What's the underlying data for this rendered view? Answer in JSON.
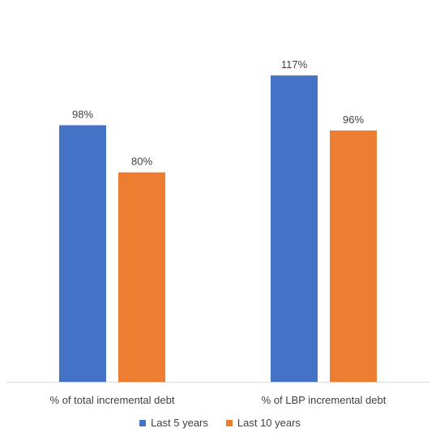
{
  "chart_data": {
    "type": "bar",
    "categories": [
      "% of total incremental debt",
      "% of LBP incremental debt"
    ],
    "series": [
      {
        "name": "Last 5 years",
        "values": [
          98,
          117
        ],
        "labels": [
          "98%",
          "117%"
        ],
        "color": "#4472C4"
      },
      {
        "name": "Last 10 years",
        "values": [
          80,
          96
        ],
        "labels": [
          "80%",
          "96%"
        ],
        "color": "#ED7D31"
      }
    ],
    "ylim": [
      0,
      130
    ],
    "grid": false,
    "legend_position": "bottom"
  }
}
